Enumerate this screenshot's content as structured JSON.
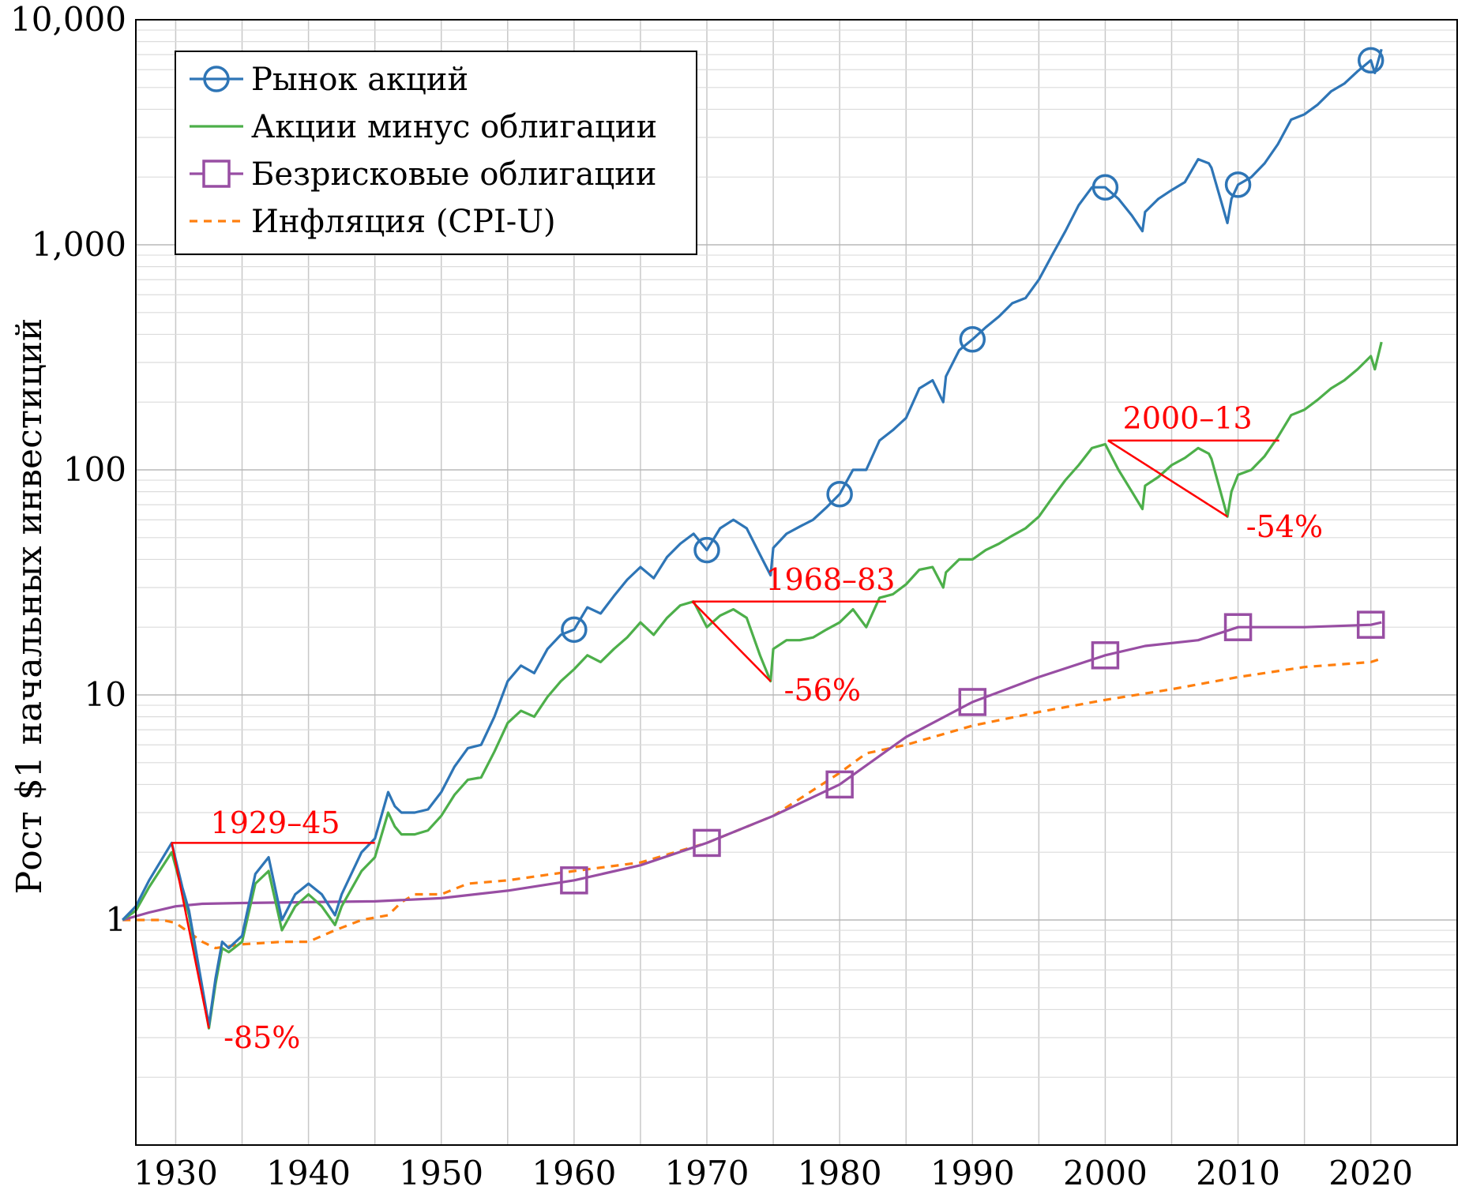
{
  "chart_data": {
    "type": "line",
    "ylabel": "Рост $1 начальных инвестиций",
    "xlabel": "",
    "xlim": [
      1927,
      2026.5
    ],
    "ylim": [
      0.1,
      10000
    ],
    "yscale": "log",
    "xticks": [
      1930,
      1940,
      1950,
      1960,
      1970,
      1980,
      1990,
      2000,
      2010,
      2020
    ],
    "yticks": [
      {
        "value": 1,
        "label": "1"
      },
      {
        "value": 10,
        "label": "10"
      },
      {
        "value": 100,
        "label": "100"
      },
      {
        "value": 1000,
        "label": "1,000"
      },
      {
        "value": 10000,
        "label": "10,000"
      }
    ],
    "grid": true,
    "legend": {
      "position": "top-left"
    },
    "series": [
      {
        "name": "Рынок акций",
        "color": "#2e75b6",
        "marker": "circle",
        "marker_x": [
          1960,
          1970,
          1980,
          1990,
          2000,
          2010,
          2020
        ],
        "x": [
          1926,
          1927,
          1928,
          1929.7,
          1930.5,
          1931,
          1932.5,
          1933,
          1933.5,
          1934,
          1935,
          1936,
          1937,
          1938,
          1939,
          1940,
          1941,
          1942,
          1942.5,
          1944,
          1945,
          1946,
          1946.5,
          1947,
          1948,
          1949,
          1950,
          1951,
          1952,
          1953,
          1954,
          1955,
          1956,
          1957,
          1958,
          1959,
          1960,
          1961,
          1962,
          1963,
          1964,
          1965,
          1966,
          1967,
          1968,
          1969,
          1970,
          1971,
          1972,
          1973,
          1974,
          1974.8,
          1975,
          1976,
          1977,
          1978,
          1979,
          1980,
          1981,
          1982,
          1983,
          1984,
          1985,
          1986,
          1987,
          1987.8,
          1988,
          1989,
          1990,
          1991,
          1992,
          1993,
          1994,
          1995,
          1996,
          1997,
          1998,
          1999,
          2000,
          2001,
          2002,
          2002.8,
          2003,
          2004,
          2005,
          2006,
          2007,
          2007.8,
          2008,
          2009.2,
          2009.5,
          2010,
          2011,
          2012,
          2013,
          2014,
          2015,
          2016,
          2017,
          2018,
          2019,
          2020,
          2020.3,
          2020.8
        ],
        "y": [
          1,
          1.15,
          1.5,
          2.2,
          1.4,
          1.1,
          0.34,
          0.55,
          0.8,
          0.75,
          0.85,
          1.6,
          1.9,
          1.0,
          1.3,
          1.45,
          1.3,
          1.05,
          1.3,
          2.0,
          2.3,
          3.7,
          3.2,
          3.0,
          3.0,
          3.1,
          3.7,
          4.8,
          5.8,
          6.0,
          8.0,
          11.5,
          13.5,
          12.5,
          16.0,
          18.5,
          19.5,
          24.5,
          23.0,
          27.5,
          32.5,
          37.0,
          33.0,
          41.0,
          47.0,
          52.0,
          44.0,
          55.0,
          60.0,
          55.0,
          42.0,
          34.0,
          45.0,
          52.0,
          56.0,
          60.0,
          68.0,
          78.0,
          100.0,
          100.0,
          135.0,
          150.0,
          170.0,
          230.0,
          250.0,
          200.0,
          260.0,
          340.0,
          380.0,
          430.0,
          480.0,
          550.0,
          580.0,
          700.0,
          900.0,
          1150.0,
          1500.0,
          1800.0,
          1800.0,
          1600.0,
          1350.0,
          1150.0,
          1400.0,
          1600.0,
          1750.0,
          1900.0,
          2400.0,
          2300.0,
          2200.0,
          1250.0,
          1600.0,
          1850.0,
          2000.0,
          2300.0,
          2800.0,
          3600.0,
          3800.0,
          4200.0,
          4800.0,
          5200.0,
          5900.0,
          6600.0,
          5800.0,
          7400.0
        ]
      },
      {
        "name": "Акции минус облигации",
        "color": "#4daf4a",
        "marker": "none",
        "x": [
          1926,
          1927,
          1928,
          1929.7,
          1930.5,
          1931,
          1932.5,
          1933,
          1933.5,
          1934,
          1935,
          1936,
          1937,
          1938,
          1939,
          1940,
          1941,
          1942,
          1942.5,
          1944,
          1945,
          1946,
          1946.5,
          1947,
          1948,
          1949,
          1950,
          1951,
          1952,
          1953,
          1954,
          1955,
          1956,
          1957,
          1958,
          1959,
          1960,
          1961,
          1962,
          1963,
          1964,
          1965,
          1966,
          1967,
          1968,
          1969,
          1970,
          1971,
          1972,
          1973,
          1974,
          1974.8,
          1975,
          1976,
          1977,
          1978,
          1979,
          1980,
          1981,
          1982,
          1983,
          1984,
          1985,
          1986,
          1987,
          1987.8,
          1988,
          1989,
          1990,
          1991,
          1992,
          1993,
          1994,
          1995,
          1996,
          1997,
          1998,
          1999,
          2000,
          2001,
          2002,
          2002.8,
          2003,
          2004,
          2005,
          2006,
          2007,
          2007.8,
          2008,
          2009.2,
          2009.5,
          2010,
          2011,
          2012,
          2013,
          2014,
          2015,
          2016,
          2017,
          2018,
          2019,
          2020,
          2020.3,
          2020.8
        ],
        "y": [
          1,
          1.1,
          1.4,
          2.0,
          1.35,
          1.05,
          0.33,
          0.52,
          0.75,
          0.72,
          0.8,
          1.45,
          1.65,
          0.9,
          1.15,
          1.3,
          1.15,
          0.95,
          1.15,
          1.65,
          1.9,
          3.0,
          2.6,
          2.4,
          2.4,
          2.5,
          2.9,
          3.6,
          4.2,
          4.3,
          5.6,
          7.5,
          8.5,
          8.0,
          9.8,
          11.5,
          13.0,
          15.0,
          14.0,
          16.0,
          18.0,
          21.0,
          18.5,
          22.0,
          25.0,
          26.0,
          20.0,
          22.5,
          24.0,
          22.0,
          15.0,
          11.5,
          16.0,
          17.5,
          17.5,
          18.0,
          19.5,
          21.0,
          24.0,
          20.0,
          27.0,
          28.0,
          31.0,
          36.0,
          37.0,
          30.0,
          35.0,
          40.0,
          40.0,
          44.0,
          47.0,
          51.0,
          55.0,
          62.0,
          75.0,
          90.0,
          105.0,
          125.0,
          130.0,
          100.0,
          80.0,
          67.0,
          85.0,
          93.0,
          105.0,
          113.0,
          125.0,
          118.0,
          112.0,
          62.0,
          80.0,
          95.0,
          100.0,
          115.0,
          140.0,
          175.0,
          185.0,
          205.0,
          230.0,
          250.0,
          280.0,
          320.0,
          280.0,
          370.0
        ]
      },
      {
        "name": "Безрисковые облигации",
        "color": "#984ea3",
        "marker": "square",
        "marker_x": [
          1960,
          1970,
          1980,
          1990,
          2000,
          2010,
          2020
        ],
        "x": [
          1926,
          1928,
          1930,
          1932,
          1935,
          1940,
          1945,
          1950,
          1955,
          1960,
          1965,
          1970,
          1975,
          1980,
          1985,
          1990,
          1995,
          2000,
          2003,
          2007,
          2010,
          2015,
          2020,
          2020.8
        ],
        "y": [
          1,
          1.08,
          1.15,
          1.18,
          1.19,
          1.2,
          1.21,
          1.25,
          1.35,
          1.5,
          1.75,
          2.2,
          2.9,
          4.0,
          6.5,
          9.3,
          12.0,
          15.0,
          16.5,
          17.5,
          20.0,
          20.0,
          20.5,
          21.0
        ]
      },
      {
        "name": "Инфляция (CPI-U)",
        "color": "#ff7f0e",
        "marker": "none",
        "dashed": true,
        "x": [
          1926,
          1929,
          1930,
          1932,
          1933,
          1935,
          1938,
          1940,
          1942,
          1944,
          1946,
          1947,
          1948,
          1950,
          1952,
          1955,
          1960,
          1965,
          1970,
          1975,
          1980,
          1982,
          1985,
          1990,
          1995,
          2000,
          2005,
          2010,
          2015,
          2020,
          2020.8
        ],
        "y": [
          1,
          1.0,
          0.97,
          0.8,
          0.75,
          0.78,
          0.8,
          0.8,
          0.9,
          1.0,
          1.05,
          1.2,
          1.3,
          1.3,
          1.45,
          1.5,
          1.65,
          1.8,
          2.2,
          2.9,
          4.5,
          5.5,
          6.0,
          7.3,
          8.4,
          9.5,
          10.6,
          12.0,
          13.3,
          14.0,
          14.5
        ]
      }
    ],
    "annotations": [
      {
        "type": "hline",
        "x0": 1929.7,
        "x1": 1945,
        "y": 2.2,
        "label": "1929–45",
        "label_x": 1937.5,
        "label_y": 2.7
      },
      {
        "type": "segment",
        "x0": 1929.7,
        "y0": 2.2,
        "x1": 1932.5,
        "y1": 0.33,
        "label": "-85%",
        "label_x": 1936.5,
        "label_y": 0.3
      },
      {
        "type": "hline",
        "x0": 1968.9,
        "x1": 1983.5,
        "y": 26.0,
        "label": "1968–83",
        "label_x": 1979.3,
        "label_y": 32.5
      },
      {
        "type": "segment",
        "x0": 1968.9,
        "y0": 26.0,
        "x1": 1974.8,
        "y1": 11.5,
        "label": "-56%",
        "label_x": 1978.7,
        "label_y": 10.5
      },
      {
        "type": "hline",
        "x0": 2000.2,
        "x1": 2013.1,
        "y": 135.0,
        "label": "2000–13",
        "label_x": 2006.2,
        "label_y": 170.0
      },
      {
        "type": "segment",
        "x0": 2000.2,
        "y0": 135.0,
        "x1": 2009.2,
        "y1": 62.0,
        "label": "-54%",
        "label_x": 2013.5,
        "label_y": 56.0
      }
    ]
  }
}
